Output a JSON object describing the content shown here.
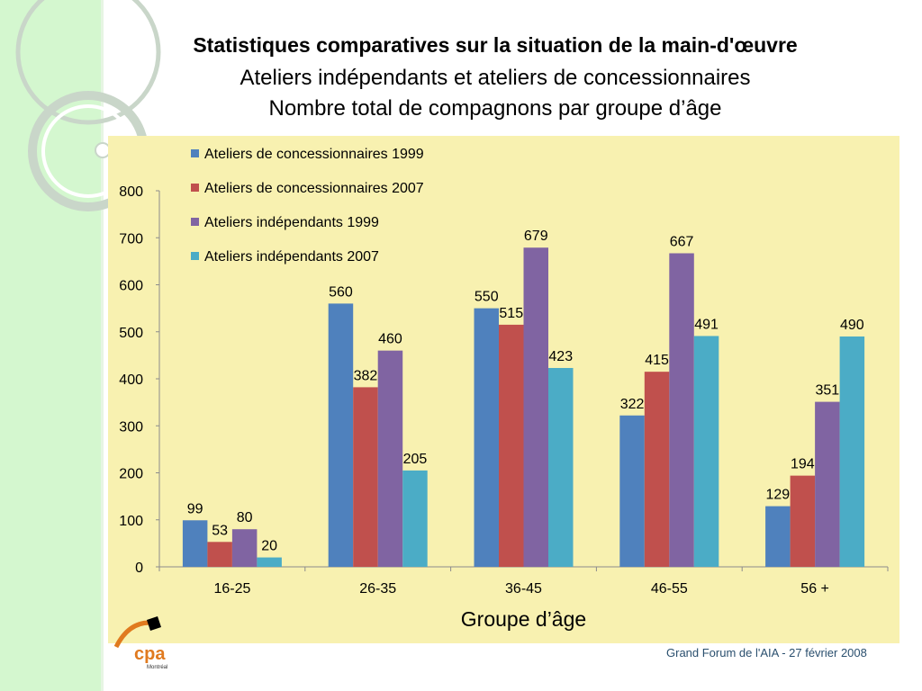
{
  "slide": {
    "title": "Statistiques comparatives sur la situation de la main-d'œuvre",
    "subtitle1": "Ateliers indépendants et ateliers de concessionnaires",
    "subtitle2": "Nombre total de compagnons par groupe d’âge",
    "footer": "Grand Forum de l'AIA -  27 février 2008",
    "logo_text": "cpa",
    "logo_subtext": "Montréal"
  },
  "colors": {
    "sidebar": "#d4f7cf",
    "chart_background": "#f8f1b0",
    "series": [
      "#4f81bd",
      "#c0504d",
      "#8064a2",
      "#4bacc6"
    ]
  },
  "chart_data": {
    "type": "bar",
    "title": "",
    "xlabel": "Groupe d’âge",
    "ylabel": "",
    "categories": [
      "16-25",
      "26-35",
      "36-45",
      "46-55",
      "56 +"
    ],
    "ylim": [
      0,
      800
    ],
    "yticks": [
      0,
      100,
      200,
      300,
      400,
      500,
      600,
      700,
      800
    ],
    "grid": false,
    "legend_position": "top-left",
    "series": [
      {
        "name": "Ateliers de concessionnaires 1999",
        "values": [
          99,
          560,
          550,
          322,
          129
        ]
      },
      {
        "name": "Ateliers de concessionnaires 2007",
        "values": [
          53,
          382,
          515,
          415,
          194
        ]
      },
      {
        "name": "Ateliers indépendants 1999",
        "values": [
          80,
          460,
          679,
          667,
          351
        ]
      },
      {
        "name": "Ateliers indépendants 2007",
        "values": [
          20,
          205,
          423,
          491,
          490
        ]
      }
    ]
  }
}
